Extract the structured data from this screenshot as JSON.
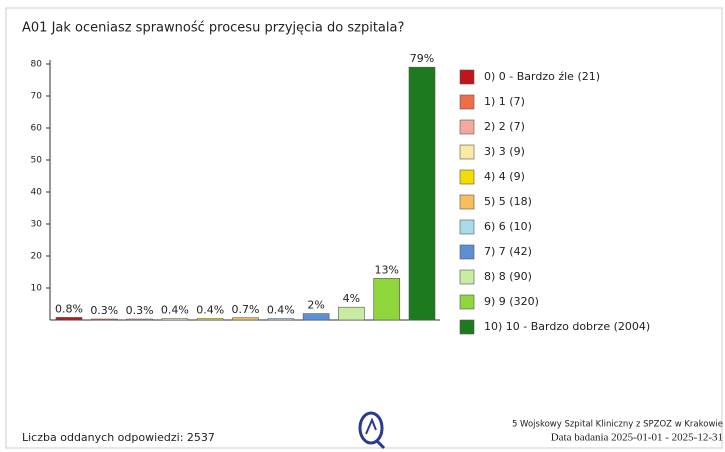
{
  "chart_data": {
    "type": "bar",
    "title": "A01 Jak oceniasz sprawność procesu przyjęcia do szpitala?",
    "categories": [
      "0) 0 - Bardzo źle (21)",
      "1) 1 (7)",
      "2) 2 (7)",
      "3) 3 (9)",
      "4) 4 (9)",
      "5) 5 (18)",
      "6) 6 (10)",
      "7) 7 (42)",
      "8) 8 (90)",
      "9) 9 (320)",
      "10) 10 - Bardzo dobrze (2004)"
    ],
    "values": [
      0.8,
      0.3,
      0.3,
      0.4,
      0.4,
      0.7,
      0.4,
      2,
      4,
      13,
      79
    ],
    "value_labels": [
      "0.8%",
      "0.3%",
      "0.3%",
      "0.4%",
      "0.4%",
      "0.7%",
      "0.4%",
      "2%",
      "4%",
      "13%",
      "79%"
    ],
    "colors": [
      "#c0161b",
      "#f26b4a",
      "#f5a99c",
      "#fbe9a6",
      "#f5dc00",
      "#f6bf5e",
      "#a8dcec",
      "#5b8fd6",
      "#c9eca3",
      "#8ed63c",
      "#1e7a1e"
    ],
    "ylim": [
      0,
      80
    ],
    "yticks": [
      10,
      20,
      30,
      40,
      50,
      60,
      70,
      80
    ],
    "legend": "right",
    "footer": {
      "responses": "Liczba oddanych odpowiedzi: 2537",
      "institution": "5 Wojskowy Szpital Kliniczny z SPZOZ w Krakowie",
      "period": "Data badania  2025-01-01 - 2025-12-31"
    }
  }
}
